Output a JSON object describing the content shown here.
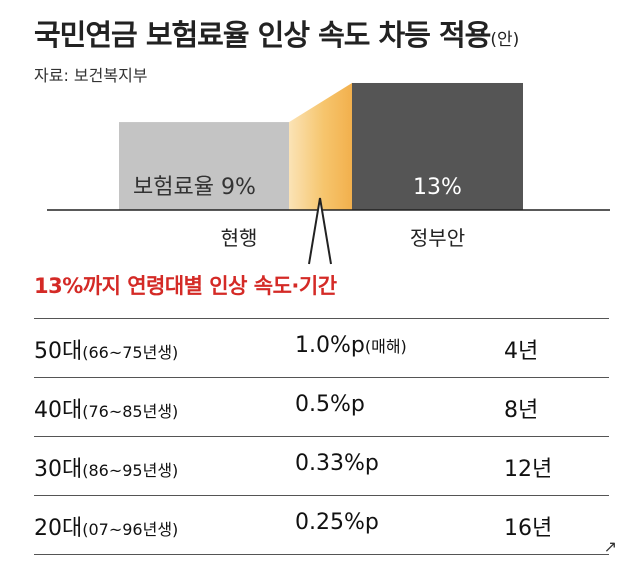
{
  "title": {
    "main": "국민연금 보험료율 인상 속도 차등 적용",
    "suffix": "(안)"
  },
  "source": "자료: 보건복지부",
  "chart_data": {
    "type": "bar",
    "categories": [
      "현행",
      "정부안"
    ],
    "values": [
      9,
      13
    ],
    "value_labels": [
      "보험료율 9%",
      "13%"
    ],
    "value_unit": "%",
    "colors": {
      "current": "#c4c4c4",
      "proposal": "#555555",
      "transition": "#f6c56d",
      "baseline": "#222222"
    }
  },
  "subheading": "13%까지 연령대별 인상 속도·기간",
  "table": {
    "rows": [
      {
        "age": "50대",
        "birth": "(66~75년생)",
        "rate": "1.0%p",
        "rate_note": "(매해)",
        "period": "4년"
      },
      {
        "age": "40대",
        "birth": "(76~85년생)",
        "rate": "0.5%p",
        "rate_note": "",
        "period": "8년"
      },
      {
        "age": "30대",
        "birth": "(86~95년생)",
        "rate": "0.33%p",
        "rate_note": "",
        "period": "12년"
      },
      {
        "age": "20대",
        "birth": "(07~96년생)",
        "rate": "0.25%p",
        "rate_note": "",
        "period": "16년"
      }
    ]
  },
  "expand_icon": "expand-icon"
}
